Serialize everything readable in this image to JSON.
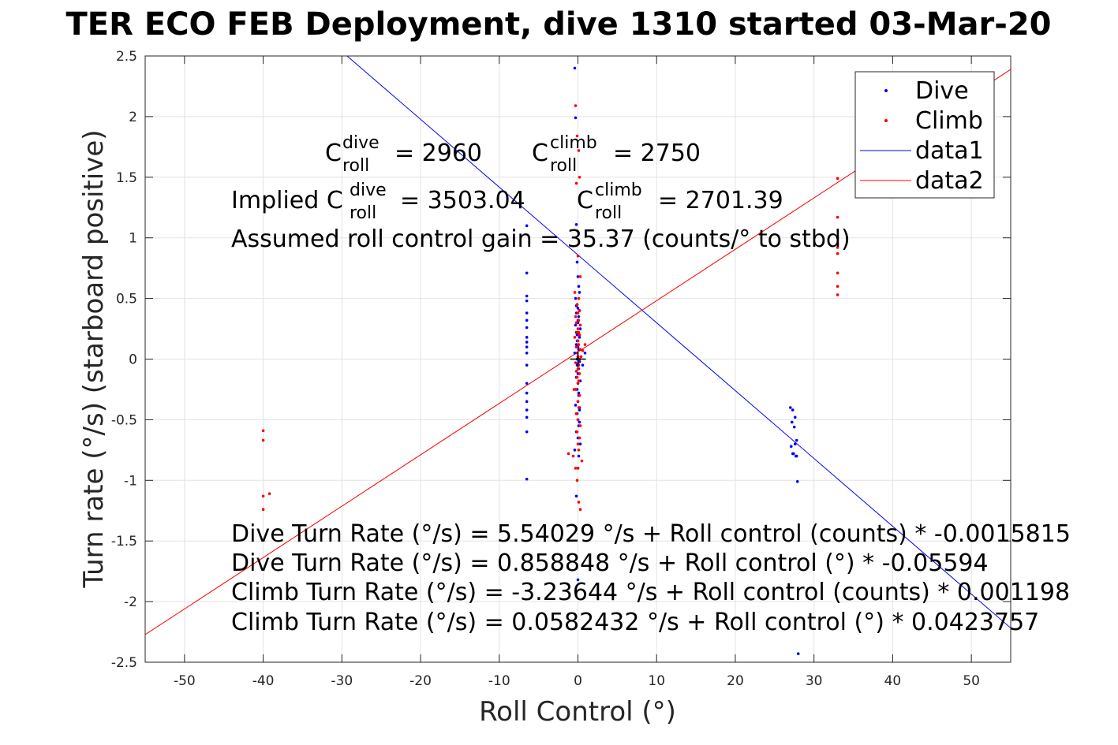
{
  "chart_data": {
    "type": "scatter",
    "title": "TER ECO FEB Deployment, dive 1310 started 03-Mar-20",
    "xlabel": "Roll Control (°)",
    "ylabel": "Turn rate (°/s) (starboard positive)",
    "xlim": [
      -55,
      55
    ],
    "ylim": [
      -2.5,
      2.5
    ],
    "xticks": [
      -50,
      -40,
      -30,
      -20,
      -10,
      0,
      10,
      20,
      30,
      40,
      50
    ],
    "xtick_labels": [
      "-50",
      "-40",
      "-30",
      "-20",
      "-10",
      "0",
      "10",
      "20",
      "30",
      "40",
      "50"
    ],
    "yticks": [
      -2.5,
      -2,
      -1.5,
      -1,
      -0.5,
      0,
      0.5,
      1,
      1.5,
      2,
      2.5
    ],
    "ytick_labels": [
      "-2.5",
      "-2",
      "-1.5",
      "-1",
      "-0.5",
      "0",
      "0.5",
      "1",
      "1.5",
      "2",
      "2.5"
    ],
    "grid": true,
    "legend_position": "top-right",
    "series": [
      {
        "name": "Dive",
        "kind": "points",
        "color": "#0000ff",
        "x": [
          -6.5,
          -6.5,
          -6.5,
          -6.5,
          -6.5,
          -6.5,
          -6.5,
          -6.5,
          -6.5,
          -6.5,
          -6.5,
          -6.5,
          -6.5,
          -6.5,
          -6.5,
          -6.5,
          -6.5,
          -6.5,
          -6.5,
          -0.4,
          -0.3,
          -0.2,
          -0.1,
          0,
          0.1,
          0.2,
          -0.3,
          -0.1,
          0,
          0.2,
          -0.2,
          0.1,
          0,
          -0.3,
          0.3,
          -0.1,
          0.2,
          0,
          -0.2,
          0.1,
          -0.4,
          0,
          0.2,
          -0.1,
          0.1,
          0,
          -0.2,
          0.3,
          0,
          -0.1,
          0.1,
          0,
          -0.3,
          0.2,
          -0.1,
          0,
          0.1,
          -0.2,
          0,
          0.3,
          -0.4,
          0.1,
          0,
          -0.2,
          0.2,
          0,
          -0.1,
          0.6,
          0.9,
          -0.2,
          0,
          0.1,
          -0.1,
          0.2,
          0,
          -0.2,
          0.1,
          0,
          27,
          27.3,
          27.6,
          27.2,
          27.5,
          27.8,
          27.1,
          27.4,
          27.7,
          27.9,
          27.3,
          27.6,
          27.8,
          28
        ],
        "y": [
          1.1,
          0.71,
          0.52,
          0.48,
          0.38,
          0.32,
          0.26,
          0.18,
          0.14,
          0.1,
          0.05,
          -0.05,
          -0.2,
          -0.28,
          -0.35,
          -0.42,
          -0.48,
          -0.6,
          -0.99,
          2.4,
          1.99,
          1.11,
          0.8,
          0.68,
          0.6,
          0.55,
          0.5,
          0.45,
          0.42,
          0.4,
          0.38,
          0.35,
          0.3,
          0.28,
          0.25,
          0.2,
          0.18,
          0.15,
          0.12,
          0.08,
          0.05,
          0.02,
          -0.02,
          -0.05,
          -0.08,
          -0.12,
          -0.15,
          -0.18,
          -0.2,
          -0.25,
          -0.3,
          -0.35,
          -0.38,
          -0.42,
          -0.45,
          -0.5,
          -0.55,
          -0.6,
          -0.65,
          -0.7,
          -0.75,
          -0.8,
          -0.9,
          -1.13,
          -0.4,
          0.1,
          0.15,
          -0.05,
          0.05,
          0.22,
          0.32,
          -0.28,
          0.0,
          -0.52,
          -0.04,
          0.44,
          0.08,
          -1.82,
          -0.4,
          -0.42,
          -0.48,
          -0.52,
          -0.56,
          -0.67,
          -0.72,
          -0.78,
          -0.8,
          -1.01,
          -0.78,
          -0.7,
          -0.8,
          -2.43
        ]
      },
      {
        "name": "Climb",
        "kind": "points",
        "color": "#ff0000",
        "x": [
          -40,
          -40,
          -40,
          -40,
          -39.2,
          -0.3,
          -0.1,
          0.1,
          0.2,
          -0.2,
          0,
          0.3,
          -0.4,
          0.1,
          -0.1,
          0.2,
          0,
          -0.3,
          0.1,
          -0.2,
          0.3,
          0,
          -0.1,
          0.2,
          -0.4,
          0,
          0.1,
          -0.2,
          0.3,
          -0.1,
          0,
          0.2,
          -0.3,
          0.1,
          0,
          -0.2,
          0.2,
          -0.1,
          0.1,
          0,
          -0.3,
          0.2,
          0,
          0.1,
          -0.2,
          0,
          0.3,
          -0.1,
          0.2,
          0,
          0.1,
          -1.2,
          -0.6,
          0.9,
          0.5,
          -0.3,
          0.1,
          0.3,
          -0.2,
          0.4,
          0,
          0.2,
          -0.5,
          0.6,
          0.1,
          -0.1,
          33,
          33,
          33,
          33,
          33,
          33,
          33,
          33,
          33
        ],
        "y": [
          -0.59,
          -0.67,
          -1.13,
          -1.24,
          -1.11,
          2.09,
          1.84,
          1.72,
          1.5,
          1.45,
          0.85,
          0.68,
          0.55,
          0.5,
          0.45,
          0.4,
          0.38,
          0.35,
          0.32,
          0.3,
          0.28,
          0.25,
          0.22,
          0.2,
          0.18,
          0.15,
          0.12,
          0.1,
          0.08,
          0.05,
          0.02,
          0,
          -0.03,
          -0.05,
          -0.08,
          -0.1,
          -0.12,
          -0.15,
          -0.18,
          -0.2,
          -0.25,
          -0.3,
          -0.35,
          -0.4,
          -0.45,
          -0.5,
          -0.55,
          -0.6,
          -0.65,
          -0.7,
          -0.75,
          -0.78,
          -0.8,
          0.12,
          -0.84,
          -0.9,
          -1.18,
          -1.24,
          -0.45,
          0.02,
          -0.9,
          0.2,
          -0.25,
          0.07,
          0.22,
          -1.0,
          1.49,
          1.17,
          1.0,
          0.95,
          0.87,
          0.71,
          0.6,
          0.53,
          0.92
        ]
      },
      {
        "name": "data1",
        "kind": "line",
        "color": "#0000ff",
        "x": [
          -55,
          55
        ],
        "y": [
          3.9354,
          -2.2179
        ]
      },
      {
        "name": "data2",
        "kind": "line",
        "color": "#ff0000",
        "x": [
          -55,
          55
        ],
        "y": [
          -2.2725,
          2.3889
        ]
      }
    ],
    "marker": {
      "x": 0,
      "y": 0,
      "color": "#000000"
    },
    "annotations": {
      "c_dive_pre": "C",
      "c_dive_sup": "dive",
      "c_dive_sub": "roll",
      "c_dive_val": "= 2960",
      "c_climb_pre": "C",
      "c_climb_sup": "climb",
      "c_climb_sub": "roll",
      "c_climb_val": "= 2750",
      "implied_pre": "Implied C",
      "implied_dive_sup": "dive",
      "implied_dive_sub": "roll",
      "implied_dive_val": "= 3503.04",
      "implied_climb_pre": "C",
      "implied_climb_sup": "climb",
      "implied_climb_sub": "roll",
      "implied_climb_val": "= 2701.39",
      "gain": "Assumed roll control gain = 35.37 (counts/° to stbd)",
      "eq1": "Dive Turn Rate (°/s) = 5.54029 °/s + Roll control (counts) * -0.0015815",
      "eq2": "Dive Turn Rate (°/s) = 0.858848 °/s + Roll control (°) * -0.05594",
      "eq3": "Climb Turn Rate (°/s) = -3.23644 °/s + Roll control (counts) * 0.001198",
      "eq4": "Climb Turn Rate (°/s) = 0.0582432 °/s + Roll control (°) * 0.0423757"
    }
  }
}
